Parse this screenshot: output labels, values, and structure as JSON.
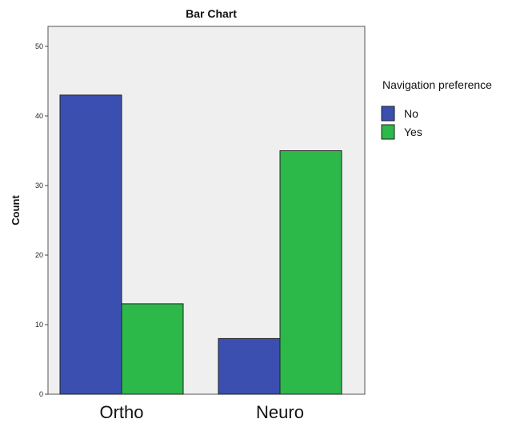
{
  "chart_data": {
    "type": "bar",
    "title": "Bar Chart",
    "xlabel": "",
    "ylabel": "Count",
    "categories": [
      "Ortho",
      "Neuro"
    ],
    "series": [
      {
        "name": "No",
        "values": [
          43,
          8
        ]
      },
      {
        "name": "Yes",
        "values": [
          13,
          35
        ]
      }
    ],
    "ylim": [
      0,
      50
    ],
    "yticks": [
      0,
      10,
      20,
      30,
      40,
      50
    ],
    "grid": false,
    "legend": {
      "title": "Navigation preference",
      "placement": "right"
    },
    "colors": {
      "No": "#3a4fb0",
      "Yes": "#2db84a",
      "plot_background": "#efefef"
    }
  }
}
